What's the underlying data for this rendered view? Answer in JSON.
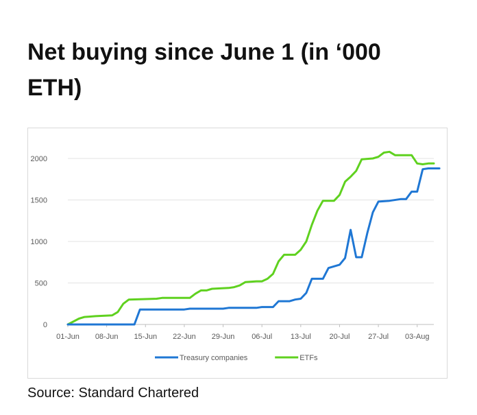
{
  "title": "Net buying since June 1 (in ‘000 ETH)",
  "source": "Source: Standard Chartered",
  "chart_data": {
    "type": "line",
    "title": "Net buying since June 1 (in ‘000 ETH)",
    "xlabel": "",
    "ylabel": "",
    "ylim": [
      0,
      2000
    ],
    "y_ticks": [
      "0",
      "500",
      "1000",
      "1500",
      "2000"
    ],
    "x_ticks": [
      "01-Jun",
      "08-Jun",
      "15-Jun",
      "22-Jun",
      "29-Jun",
      "06-Jul",
      "13-Jul",
      "20-Jul",
      "27-Jul",
      "03-Aug"
    ],
    "grid": true,
    "legend_position": "bottom",
    "series": [
      {
        "name": "Treasury companies",
        "color": "#1f77d4",
        "points": [
          [
            "2025-06-01",
            0
          ],
          [
            "2025-06-13",
            0
          ],
          [
            "2025-06-14",
            180
          ],
          [
            "2025-06-22",
            180
          ],
          [
            "2025-06-23",
            190
          ],
          [
            "2025-06-29",
            190
          ],
          [
            "2025-06-30",
            200
          ],
          [
            "2025-07-05",
            200
          ],
          [
            "2025-07-06",
            210
          ],
          [
            "2025-07-08",
            210
          ],
          [
            "2025-07-09",
            280
          ],
          [
            "2025-07-11",
            280
          ],
          [
            "2025-07-12",
            300
          ],
          [
            "2025-07-13",
            310
          ],
          [
            "2025-07-14",
            380
          ],
          [
            "2025-07-15",
            550
          ],
          [
            "2025-07-17",
            550
          ],
          [
            "2025-07-18",
            680
          ],
          [
            "2025-07-19",
            700
          ],
          [
            "2025-07-20",
            720
          ],
          [
            "2025-07-21",
            800
          ],
          [
            "2025-07-22",
            1140
          ],
          [
            "2025-07-23",
            810
          ],
          [
            "2025-07-24",
            810
          ],
          [
            "2025-07-25",
            1100
          ],
          [
            "2025-07-26",
            1350
          ],
          [
            "2025-07-27",
            1480
          ],
          [
            "2025-07-29",
            1490
          ],
          [
            "2025-07-31",
            1510
          ],
          [
            "2025-08-01",
            1510
          ],
          [
            "2025-08-02",
            1600
          ],
          [
            "2025-08-03",
            1600
          ],
          [
            "2025-08-04",
            1870
          ],
          [
            "2025-08-05",
            1880
          ],
          [
            "2025-08-07",
            1880
          ]
        ]
      },
      {
        "name": "ETFs",
        "color": "#5fd11f",
        "points": [
          [
            "2025-06-01",
            0
          ],
          [
            "2025-06-03",
            70
          ],
          [
            "2025-06-04",
            90
          ],
          [
            "2025-06-06",
            100
          ],
          [
            "2025-06-09",
            110
          ],
          [
            "2025-06-10",
            150
          ],
          [
            "2025-06-11",
            250
          ],
          [
            "2025-06-12",
            300
          ],
          [
            "2025-06-17",
            310
          ],
          [
            "2025-06-18",
            320
          ],
          [
            "2025-06-23",
            320
          ],
          [
            "2025-06-24",
            370
          ],
          [
            "2025-06-25",
            410
          ],
          [
            "2025-06-26",
            410
          ],
          [
            "2025-06-27",
            430
          ],
          [
            "2025-06-30",
            440
          ],
          [
            "2025-07-01",
            450
          ],
          [
            "2025-07-02",
            470
          ],
          [
            "2025-07-03",
            510
          ],
          [
            "2025-07-05",
            520
          ],
          [
            "2025-07-06",
            520
          ],
          [
            "2025-07-07",
            550
          ],
          [
            "2025-07-08",
            610
          ],
          [
            "2025-07-09",
            760
          ],
          [
            "2025-07-10",
            840
          ],
          [
            "2025-07-12",
            840
          ],
          [
            "2025-07-13",
            900
          ],
          [
            "2025-07-14",
            1000
          ],
          [
            "2025-07-15",
            1200
          ],
          [
            "2025-07-16",
            1370
          ],
          [
            "2025-07-17",
            1490
          ],
          [
            "2025-07-19",
            1490
          ],
          [
            "2025-07-20",
            1560
          ],
          [
            "2025-07-21",
            1720
          ],
          [
            "2025-07-22",
            1780
          ],
          [
            "2025-07-23",
            1850
          ],
          [
            "2025-07-24",
            1990
          ],
          [
            "2025-07-26",
            2000
          ],
          [
            "2025-07-27",
            2020
          ],
          [
            "2025-07-28",
            2070
          ],
          [
            "2025-07-29",
            2080
          ],
          [
            "2025-07-30",
            2040
          ],
          [
            "2025-08-02",
            2040
          ],
          [
            "2025-08-03",
            1940
          ],
          [
            "2025-08-04",
            1930
          ],
          [
            "2025-08-05",
            1940
          ],
          [
            "2025-08-06",
            1940
          ]
        ]
      }
    ]
  }
}
